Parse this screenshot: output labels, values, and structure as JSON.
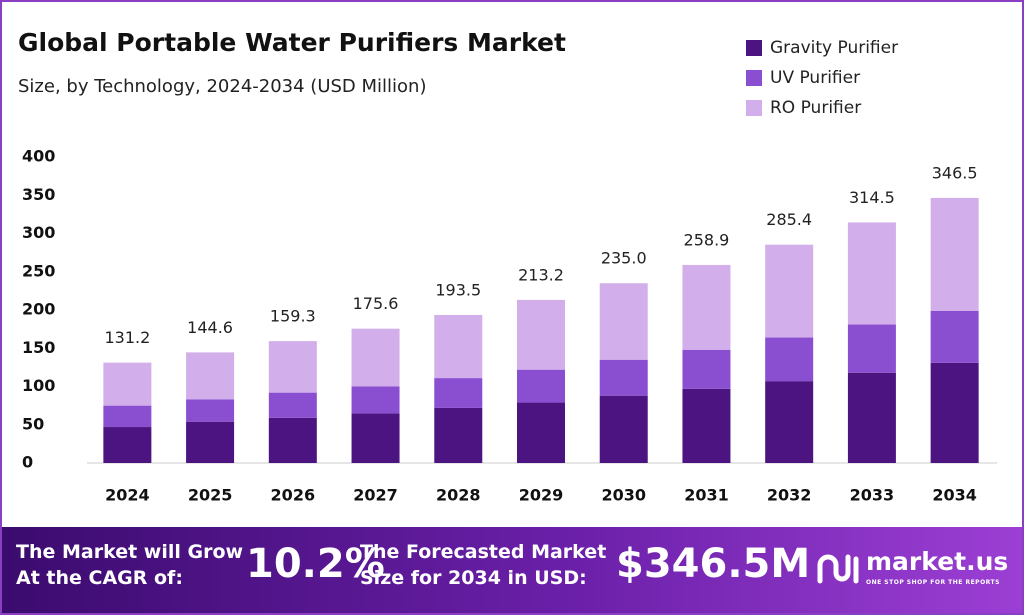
{
  "chart_data": {
    "type": "stacked-bar",
    "title": "Global Portable Water Purifiers Market",
    "subtitle": "Size, by Technology, 2024-2034 (USD Million)",
    "categories": [
      "2024",
      "2025",
      "2026",
      "2027",
      "2028",
      "2029",
      "2030",
      "2031",
      "2032",
      "2033",
      "2034"
    ],
    "series": [
      {
        "name": "Gravity Purifier",
        "color": "#4b1480",
        "values": [
          47,
          54,
          59,
          65,
          72,
          79,
          88,
          97,
          107,
          118,
          131
        ]
      },
      {
        "name": "UV Purifier",
        "color": "#8a4fd0",
        "values": [
          28,
          29,
          33,
          35,
          39,
          43,
          47,
          51,
          57,
          63,
          68
        ]
      },
      {
        "name": "RO Purifier",
        "color": "#d2aeea",
        "values": [
          56.2,
          61.6,
          67.3,
          75.6,
          82.5,
          91.2,
          100,
          110.9,
          121.4,
          133.5,
          147.5
        ]
      }
    ],
    "totals": [
      "131.2",
      "144.6",
      "159.3",
      "175.6",
      "193.5",
      "213.2",
      "235.0",
      "258.9",
      "285.4",
      "314.5",
      "346.5"
    ],
    "ylim": [
      0,
      400
    ],
    "yticks": [
      0,
      50,
      100,
      150,
      200,
      250,
      300,
      350,
      400
    ],
    "grid": false
  },
  "footer": {
    "cagr_text": [
      "The Market will Grow",
      "At the CAGR of:"
    ],
    "cagr": "10.2%",
    "forecast_text": [
      "The Forecasted Market",
      "Size for 2034 in USD:"
    ],
    "forecast": "$346.5M",
    "brand": "market.us",
    "tagline": "ONE STOP SHOP FOR THE REPORTS"
  }
}
